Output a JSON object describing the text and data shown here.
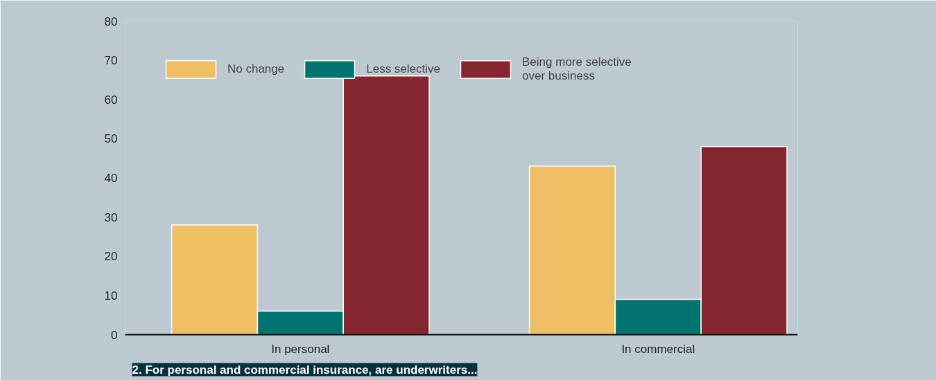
{
  "chart_data": {
    "type": "bar",
    "title": "2. For personal and commercial insurance, are underwriters...",
    "categories": [
      "In personal",
      "In commercial"
    ],
    "series": [
      {
        "name": "No change",
        "color": "#efbf66",
        "values": [
          28,
          43
        ]
      },
      {
        "name": "Less selective",
        "color": "#007370",
        "values": [
          6,
          9
        ]
      },
      {
        "name": "Being more selective\nover business",
        "color": "#842630",
        "values": [
          66,
          48
        ]
      }
    ],
    "ylim": [
      0,
      80
    ],
    "yticks": [
      0,
      10,
      20,
      30,
      40,
      50,
      60,
      70,
      80
    ],
    "grid": false,
    "legend": "top left"
  }
}
